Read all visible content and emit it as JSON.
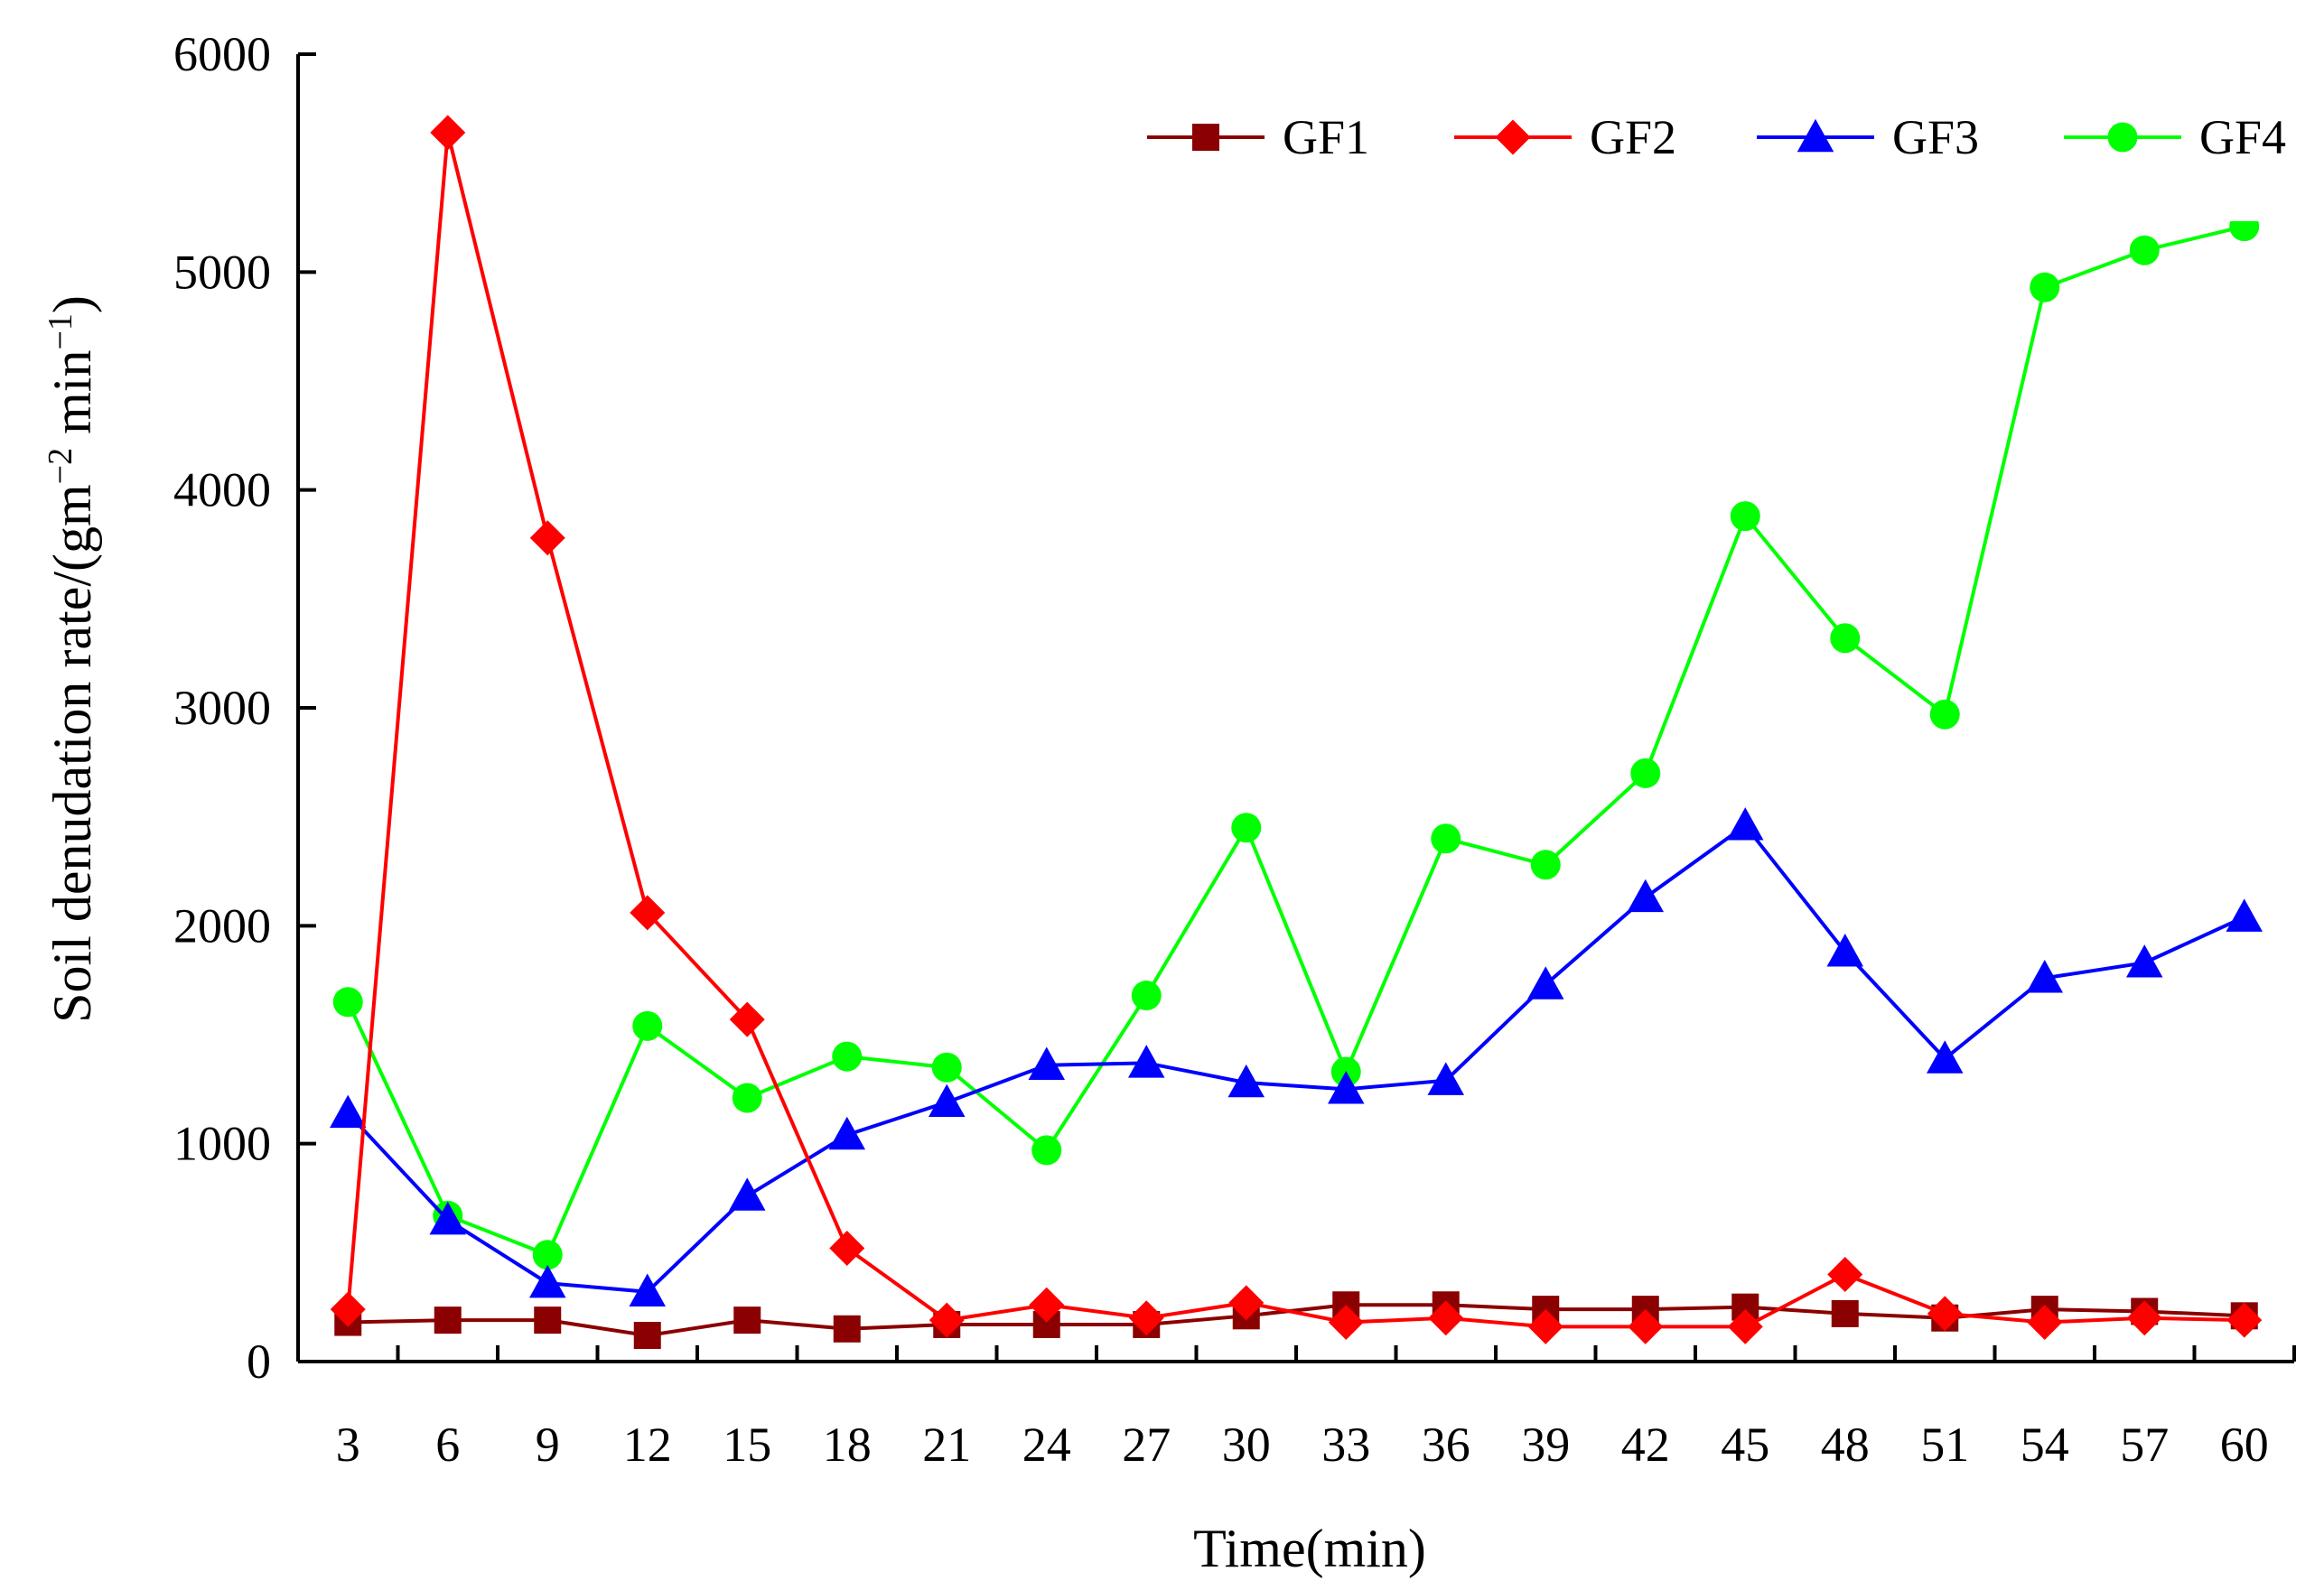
{
  "chart_data": {
    "type": "line",
    "title": "",
    "xlabel": "Time(min)",
    "ylabel_main": "Soil denudation rate/(gm",
    "ylabel_exp1": "−2",
    "ylabel_mid": " min",
    "ylabel_exp2": "−1",
    "ylabel_end": ")",
    "ylim": [
      0,
      6000
    ],
    "yticks": [
      "0",
      "1000",
      "2000",
      "3000",
      "4000",
      "5000",
      "6000"
    ],
    "x": [
      "3",
      "6",
      "9",
      "12",
      "15",
      "18",
      "21",
      "24",
      "27",
      "30",
      "33",
      "36",
      "39",
      "42",
      "45",
      "48",
      "51",
      "54",
      "57",
      "60"
    ],
    "legend_position": "top-right",
    "series": [
      {
        "name": "GF1",
        "color": "#8b0000",
        "marker": "square",
        "values": [
          180,
          190,
          190,
          120,
          190,
          150,
          170,
          170,
          170,
          210,
          260,
          260,
          240,
          240,
          250,
          220,
          200,
          240,
          230,
          210
        ]
      },
      {
        "name": "GF2",
        "color": "#ff0000",
        "marker": "diamond",
        "values": [
          240,
          5640,
          3780,
          2060,
          1570,
          520,
          190,
          260,
          200,
          270,
          180,
          200,
          160,
          160,
          160,
          400,
          220,
          180,
          200,
          190
        ]
      },
      {
        "name": "GF3",
        "color": "#0000ff",
        "marker": "triangle",
        "values": [
          1140,
          650,
          360,
          320,
          760,
          1040,
          1190,
          1360,
          1370,
          1280,
          1250,
          1290,
          1730,
          2130,
          2460,
          1880,
          1390,
          1760,
          1830,
          2040
        ]
      },
      {
        "name": "GF4",
        "color": "#00ff00",
        "marker": "circle",
        "values": [
          1650,
          670,
          490,
          1540,
          1210,
          1400,
          1350,
          970,
          1680,
          2450,
          1330,
          2400,
          2280,
          2700,
          3880,
          3320,
          2970,
          4930,
          5100,
          5210
        ]
      }
    ]
  }
}
